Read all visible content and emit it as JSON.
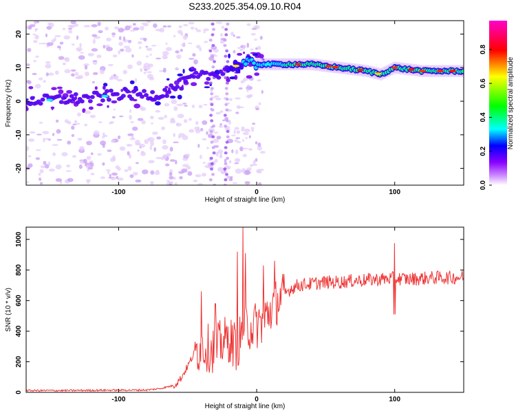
{
  "title": "S233.2025.354.09.10.R04",
  "chart_data": [
    {
      "type": "heatmap",
      "title": "S233.2025.354.09.10.R04",
      "xlabel": "Height of straight line (km)",
      "ylabel": "Frequency (Hz)",
      "xlim": [
        -167,
        150
      ],
      "ylim": [
        -25,
        24
      ],
      "xticks": [
        -100,
        0,
        100
      ],
      "yticks": [
        -20,
        -10,
        0,
        10,
        20
      ],
      "colorbar": {
        "label": "Normalized spectral amplitude",
        "range": [
          0,
          0.97
        ],
        "ticks": [
          0.0,
          0.2,
          0.4,
          0.6,
          0.8
        ],
        "tick_labels": [
          "0.0",
          "0.2",
          "0.4",
          "0.6",
          "0.8"
        ],
        "colors": [
          "#ffffff",
          "#cc88ff",
          "#8800ff",
          "#0000ff",
          "#00ffff",
          "#00ff00",
          "#ffff00",
          "#ff0000",
          "#ff00cc"
        ]
      },
      "ridge": {
        "description": "dominant frequency band",
        "x": [
          -167,
          -120,
          -100,
          -70,
          -45,
          -30,
          -20,
          -10,
          0,
          20,
          40,
          60,
          80,
          90,
          100,
          120,
          150
        ],
        "frequency": [
          0,
          1,
          2,
          2,
          7,
          8,
          10,
          11,
          11,
          11,
          11,
          10,
          9,
          8,
          10,
          9,
          9
        ]
      }
    },
    {
      "type": "line",
      "xlabel": "Height of straight line (km)",
      "ylabel": "SNR (10 * v/v)",
      "xlim": [
        -167,
        150
      ],
      "ylim": [
        0,
        1080
      ],
      "xticks": [
        -100,
        0,
        100
      ],
      "yticks": [
        0,
        200,
        400,
        600,
        800,
        1000
      ],
      "series": [
        {
          "name": "SNR",
          "color": "#ee3333",
          "x": [
            -167,
            -140,
            -110,
            -80,
            -70,
            -60,
            -55,
            -50,
            -45,
            -40,
            -35,
            -30,
            -25,
            -20,
            -15,
            -10,
            -8,
            -5,
            0,
            5,
            10,
            15,
            20,
            25,
            30,
            40,
            50,
            60,
            70,
            80,
            90,
            99,
            100,
            101,
            110,
            120,
            130,
            140,
            150
          ],
          "y": [
            12,
            12,
            14,
            15,
            25,
            45,
            90,
            170,
            260,
            300,
            290,
            280,
            330,
            350,
            300,
            380,
            420,
            430,
            440,
            470,
            540,
            600,
            640,
            680,
            700,
            710,
            720,
            720,
            730,
            735,
            740,
            745,
            740,
            745,
            740,
            745,
            750,
            750,
            755
          ]
        }
      ],
      "spikes": {
        "x": [
          -40,
          -30,
          -14,
          -10,
          -8,
          5,
          13,
          100
        ],
        "y": [
          660,
          580,
          920,
          1080,
          910,
          830,
          860,
          975
        ]
      }
    }
  ]
}
